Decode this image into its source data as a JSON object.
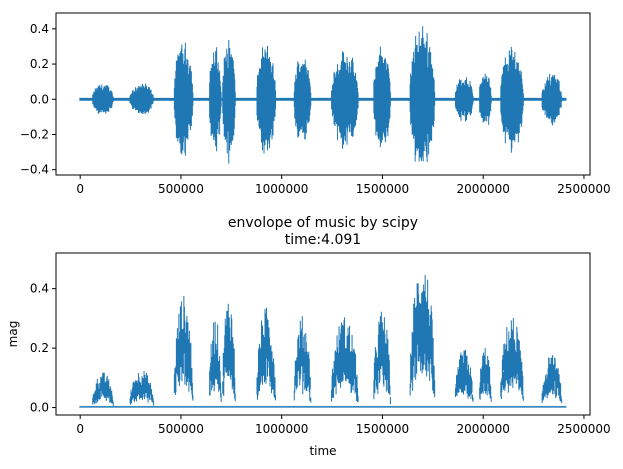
{
  "chart_data": [
    {
      "type": "line",
      "title": "",
      "subtitle": "",
      "xlabel": "",
      "ylabel": "",
      "xlim": [
        -120000,
        2530000
      ],
      "ylim": [
        -0.43,
        0.49
      ],
      "xticks": [
        0,
        500000,
        1000000,
        1500000,
        2000000,
        2500000
      ],
      "xtick_labels": [
        "0",
        "500000",
        "1000000",
        "1500000",
        "2000000",
        "2500000"
      ],
      "yticks": [
        -0.4,
        -0.2,
        0.0,
        0.2,
        0.4
      ],
      "ytick_labels": [
        "−0.4",
        "−0.2",
        "0.0",
        "0.2",
        "0.4"
      ],
      "grid": false,
      "color": "#1f77b4",
      "series": [
        {
          "segments": [
            {
              "x": [
                0,
                2410000
              ],
              "baseline": 0.008
            },
            {
              "x": [
                60000,
                165000
              ],
              "amp": 0.1
            },
            {
              "x": [
                245000,
                365000
              ],
              "amp": 0.1
            },
            {
              "x": [
                465000,
                560000
              ],
              "amp": 0.35
            },
            {
              "x": [
                640000,
                700000
              ],
              "amp": 0.32
            },
            {
              "x": [
                705000,
                770000
              ],
              "amp": 0.38
            },
            {
              "x": [
                875000,
                970000
              ],
              "amp": 0.33
            },
            {
              "x": [
                1060000,
                1145000
              ],
              "amp": 0.28
            },
            {
              "x": [
                1245000,
                1380000
              ],
              "amp": 0.3
            },
            {
              "x": [
                1455000,
                1540000
              ],
              "amp": 0.33
            },
            {
              "x": [
                1635000,
                1760000
              ],
              "amp": 0.45
            },
            {
              "x": [
                1860000,
                1950000
              ],
              "amp": 0.15
            },
            {
              "x": [
                1980000,
                2040000
              ],
              "amp": 0.19
            },
            {
              "x": [
                2085000,
                2200000
              ],
              "amp": 0.33
            },
            {
              "x": [
                2290000,
                2390000
              ],
              "amp": 0.16
            }
          ]
        }
      ]
    },
    {
      "type": "line",
      "title": "envolope of music by scipy",
      "subtitle": "time:4.091",
      "xlabel": "time",
      "ylabel": "mag",
      "xlim": [
        -120000,
        2530000
      ],
      "ylim": [
        -0.025,
        0.52
      ],
      "xticks": [
        0,
        500000,
        1000000,
        1500000,
        2000000,
        2500000
      ],
      "xtick_labels": [
        "0",
        "500000",
        "1000000",
        "1500000",
        "2000000",
        "2500000"
      ],
      "yticks": [
        0.0,
        0.2,
        0.4
      ],
      "ytick_labels": [
        "0.0",
        "0.2",
        "0.4"
      ],
      "grid": false,
      "color": "#1f77b4",
      "series": [
        {
          "segments": [
            {
              "x": [
                0,
                2410000
              ],
              "baseline": 0.005
            },
            {
              "x": [
                60000,
                165000
              ],
              "amp": 0.12
            },
            {
              "x": [
                245000,
                365000
              ],
              "amp": 0.13
            },
            {
              "x": [
                465000,
                560000
              ],
              "amp": 0.38
            },
            {
              "x": [
                640000,
                700000
              ],
              "amp": 0.31
            },
            {
              "x": [
                705000,
                770000
              ],
              "amp": 0.38
            },
            {
              "x": [
                875000,
                970000
              ],
              "amp": 0.34
            },
            {
              "x": [
                1060000,
                1145000
              ],
              "amp": 0.31
            },
            {
              "x": [
                1245000,
                1380000
              ],
              "amp": 0.31
            },
            {
              "x": [
                1455000,
                1540000
              ],
              "amp": 0.33
            },
            {
              "x": [
                1635000,
                1760000
              ],
              "amp": 0.5
            },
            {
              "x": [
                1860000,
                1950000
              ],
              "amp": 0.2
            },
            {
              "x": [
                1980000,
                2040000
              ],
              "amp": 0.21
            },
            {
              "x": [
                2085000,
                2200000
              ],
              "amp": 0.31
            },
            {
              "x": [
                2290000,
                2390000
              ],
              "amp": 0.18
            }
          ]
        }
      ]
    }
  ]
}
